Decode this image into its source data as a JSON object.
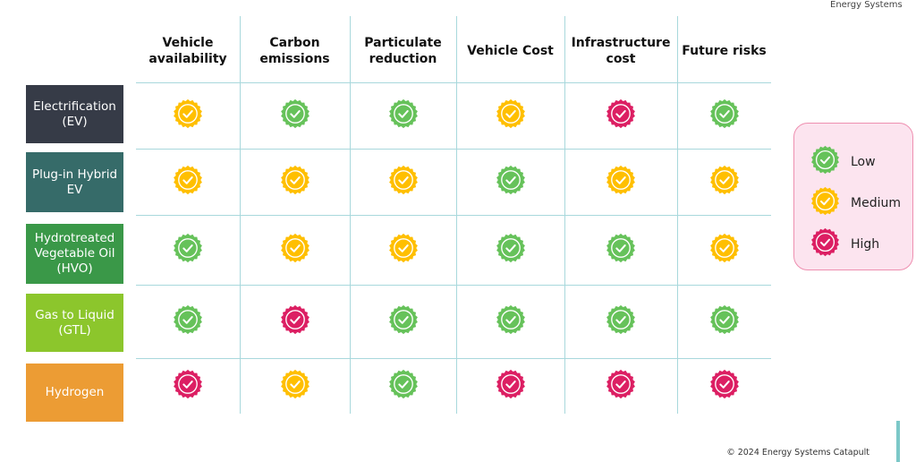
{
  "brand_cut_text": "Energy Systems",
  "colors": {
    "Low": "#66c25a",
    "Medium": "#ffbf00",
    "High": "#dc1f63"
  },
  "icon": "check-badge-icon",
  "columns": [
    "Vehicle availability",
    "Carbon emissions",
    "Particulate reduction",
    "Vehicle Cost",
    "Infrastructure cost",
    "Future risks"
  ],
  "rows": [
    {
      "label": "Electrification (EV)",
      "color": "#363b47",
      "ratings": [
        "Medium",
        "Low",
        "Low",
        "Medium",
        "High",
        "Low"
      ]
    },
    {
      "label": "Plug-in Hybrid EV",
      "color": "#366b69",
      "ratings": [
        "Medium",
        "Medium",
        "Medium",
        "Low",
        "Medium",
        "Medium"
      ]
    },
    {
      "label": "Hydrotreated Vegetable Oil (HVO)",
      "color": "#3a9848",
      "ratings": [
        "Low",
        "Medium",
        "Medium",
        "Low",
        "Low",
        "Medium"
      ]
    },
    {
      "label": "Gas to Liquid (GTL)",
      "color": "#8cc62c",
      "ratings": [
        "Low",
        "High",
        "Low",
        "Low",
        "Low",
        "Low"
      ]
    },
    {
      "label": "Hydrogen",
      "color": "#ec9c34",
      "ratings": [
        "High",
        "Medium",
        "Low",
        "High",
        "High",
        "High"
      ]
    }
  ],
  "legend": [
    {
      "level": "Low",
      "label": "Low"
    },
    {
      "level": "Medium",
      "label": "Medium"
    },
    {
      "level": "High",
      "label": "High"
    }
  ],
  "footer": "© 2024 Energy Systems Catapult"
}
